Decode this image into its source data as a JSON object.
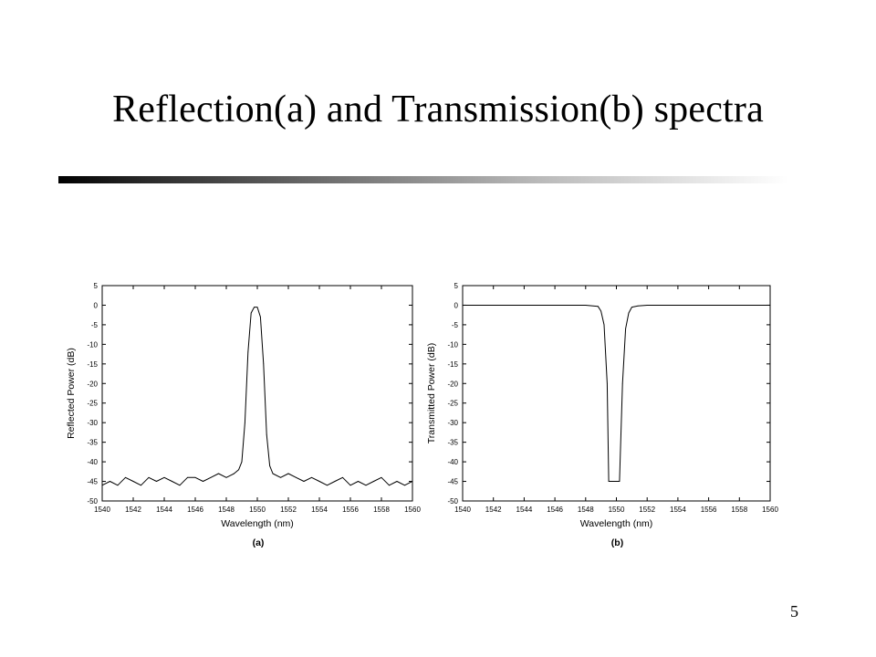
{
  "slide": {
    "title": "Reflection(a) and Transmission(b) spectra",
    "page_number": "5"
  },
  "chart_data": [
    {
      "type": "line",
      "panel_label": "(a)",
      "xlabel": "Wavelength (nm)",
      "ylabel": "Reflected Power (dB)",
      "xlim": [
        1540,
        1560
      ],
      "ylim": [
        -50,
        5
      ],
      "xticks": [
        1540,
        1542,
        1544,
        1546,
        1548,
        1550,
        1552,
        1554,
        1556,
        1558,
        1560
      ],
      "yticks": [
        5,
        0,
        -5,
        -10,
        -15,
        -20,
        -25,
        -30,
        -35,
        -40,
        -45,
        -50
      ],
      "grid": false,
      "series": [
        {
          "x": [
            1540.0,
            1540.5,
            1541.0,
            1541.5,
            1542.0,
            1542.5,
            1543.0,
            1543.5,
            1544.0,
            1544.5,
            1545.0,
            1545.5,
            1546.0,
            1546.5,
            1547.0,
            1547.5,
            1548.0,
            1548.5,
            1548.8,
            1549.0,
            1549.2,
            1549.4,
            1549.6,
            1549.8,
            1550.0,
            1550.2,
            1550.4,
            1550.6,
            1550.8,
            1551.0,
            1551.5,
            1552.0,
            1552.5,
            1553.0,
            1553.5,
            1554.0,
            1554.5,
            1555.0,
            1555.5,
            1556.0,
            1556.5,
            1557.0,
            1557.5,
            1558.0,
            1558.5,
            1559.0,
            1559.5,
            1560.0
          ],
          "y": [
            -46,
            -45,
            -46,
            -44,
            -45,
            -46,
            -44,
            -45,
            -44,
            -45,
            -46,
            -44,
            -44,
            -45,
            -44,
            -43,
            -44,
            -43,
            -42,
            -40,
            -30,
            -12,
            -2,
            -0.5,
            -0.5,
            -3,
            -15,
            -33,
            -41,
            -43,
            -44,
            -43,
            -44,
            -45,
            -44,
            -45,
            -46,
            -45,
            -44,
            -46,
            -45,
            -46,
            -45,
            -44,
            -46,
            -45,
            -46,
            -45
          ]
        }
      ]
    },
    {
      "type": "line",
      "panel_label": "(b)",
      "xlabel": "Wavelength (nm)",
      "ylabel": "Transmitted Power (dB)",
      "xlim": [
        1540,
        1560
      ],
      "ylim": [
        -50,
        5
      ],
      "xticks": [
        1540,
        1542,
        1544,
        1546,
        1548,
        1550,
        1552,
        1554,
        1556,
        1558,
        1560
      ],
      "yticks": [
        5,
        0,
        -5,
        -10,
        -15,
        -20,
        -25,
        -30,
        -35,
        -40,
        -45,
        -50
      ],
      "grid": false,
      "series": [
        {
          "x": [
            1540.0,
            1542.0,
            1544.0,
            1546.0,
            1548.0,
            1548.8,
            1549.0,
            1549.2,
            1549.4,
            1549.5,
            1549.6,
            1550.0,
            1550.2,
            1550.4,
            1550.6,
            1550.8,
            1551.0,
            1551.4,
            1552.0,
            1554.0,
            1556.0,
            1558.0,
            1560.0
          ],
          "y": [
            0,
            0,
            0,
            0,
            0,
            -0.3,
            -1.5,
            -5,
            -20,
            -45,
            -45,
            -45,
            -45,
            -20,
            -6,
            -2,
            -0.5,
            -0.2,
            0,
            0,
            0,
            0,
            0
          ]
        }
      ]
    }
  ]
}
